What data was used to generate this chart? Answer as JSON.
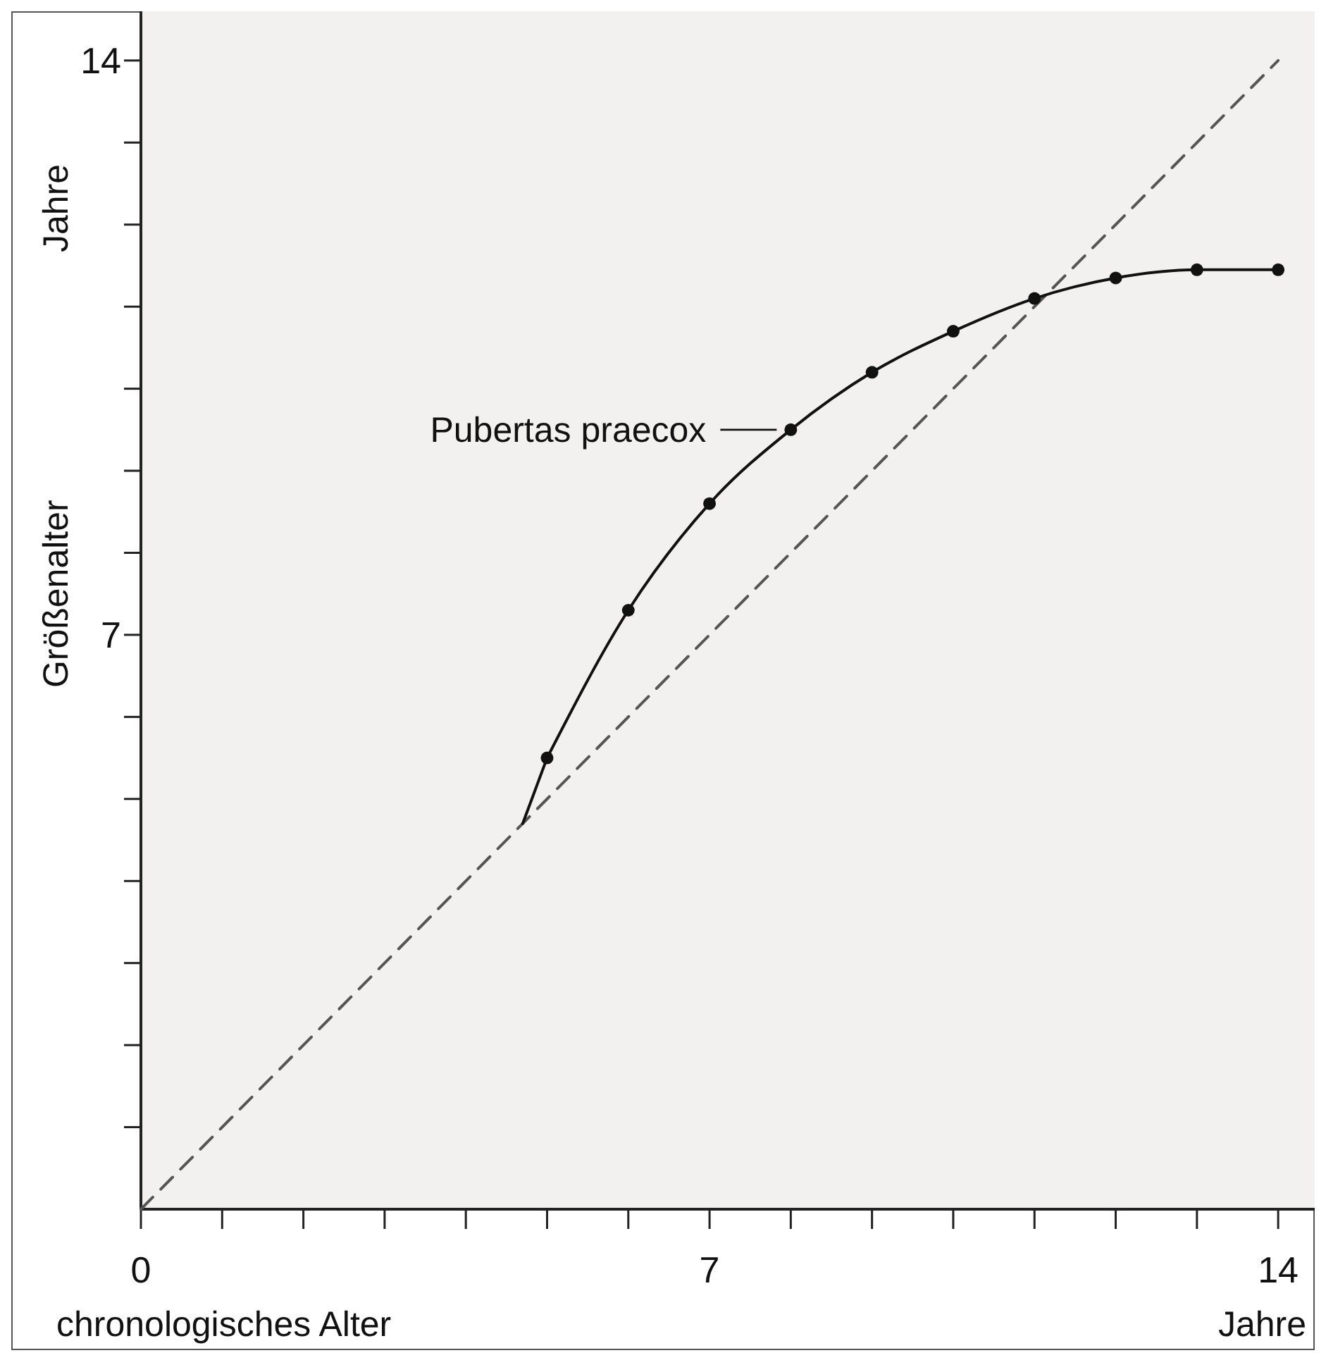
{
  "chart_data": {
    "type": "line",
    "xlabel": "chronologisches Alter",
    "ylabel": "Größenalter",
    "annotations": [
      "Jahre",
      "Jahre"
    ],
    "xlim": [
      0,
      14.45
    ],
    "ylim": [
      0,
      14.6
    ],
    "xticks": [
      0,
      {
        "value": 1,
        "label": null
      },
      {
        "value": 2,
        "label": null
      },
      {
        "value": 3,
        "label": null
      },
      {
        "value": 4,
        "label": null
      },
      {
        "value": 5,
        "label": null
      },
      {
        "value": 6,
        "label": null
      },
      7,
      {
        "value": 8,
        "label": null
      },
      {
        "value": 9,
        "label": null
      },
      {
        "value": 10,
        "label": null
      },
      {
        "value": 11,
        "label": null
      },
      {
        "value": 12,
        "label": null
      },
      {
        "value": 13,
        "label": null
      },
      14
    ],
    "yticks": [
      {
        "value": 1,
        "label": null
      },
      {
        "value": 2,
        "label": null
      },
      {
        "value": 3,
        "label": null
      },
      {
        "value": 4,
        "label": null
      },
      {
        "value": 5,
        "label": null
      },
      {
        "value": 6,
        "label": null
      },
      7,
      {
        "value": 8,
        "label": null
      },
      {
        "value": 9,
        "label": null
      },
      {
        "value": 10,
        "label": null
      },
      {
        "value": 11,
        "label": null
      },
      {
        "value": 12,
        "label": null
      },
      {
        "value": 13,
        "label": null
      },
      14
    ],
    "grid": false,
    "series": [
      {
        "color": "#555555",
        "line_style": "dashed",
        "marker": "none",
        "x": [
          0,
          14
        ],
        "values": [
          0,
          14
        ]
      },
      {
        "color": "#111111",
        "line_style": "solid",
        "x": [
          4.7,
          5
        ],
        "values": [
          4.7,
          5.5
        ]
      },
      {
        "name": "Pubertas praecox",
        "color": "#111111",
        "line_style": "solid",
        "marker": "circle",
        "x": [
          5,
          6,
          7,
          8,
          9,
          10,
          11,
          12,
          13,
          14
        ],
        "values": [
          5.5,
          7.3,
          8.6,
          9.5,
          10.2,
          10.7,
          11.1,
          11.35,
          11.45,
          11.45
        ]
      }
    ]
  }
}
